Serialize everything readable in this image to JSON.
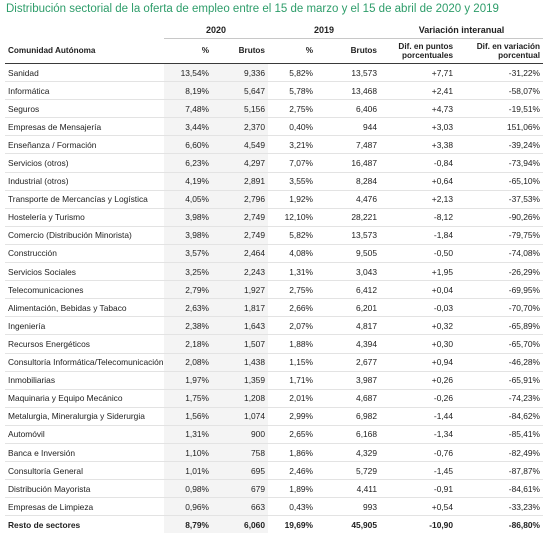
{
  "title": "Distribución sectorial de la oferta de empleo entre el 15 de marzo y el 15 de abril de 2020 y 2019",
  "header": {
    "group_2020": "2020",
    "group_2019": "2019",
    "group_var": "Variación interanual",
    "col_label": "Comunidad Autónoma",
    "col_pct_2020": "%",
    "col_brutos_2020": "Brutos",
    "col_pct_2019": "%",
    "col_brutos_2019": "Brutos",
    "col_dif_pts": "Dif. en puntos porcentuales",
    "col_dif_var": "Dif. en variación porcentual"
  },
  "rows": [
    {
      "sector": "Sanidad",
      "p20": "13,54%",
      "b20": "9,336",
      "p19": "5,82%",
      "b19": "13,573",
      "dpp": "+7,71",
      "dvp": "-31,22%"
    },
    {
      "sector": "Informática",
      "p20": "8,19%",
      "b20": "5,647",
      "p19": "5,78%",
      "b19": "13,468",
      "dpp": "+2,41",
      "dvp": "-58,07%"
    },
    {
      "sector": "Seguros",
      "p20": "7,48%",
      "b20": "5,156",
      "p19": "2,75%",
      "b19": "6,406",
      "dpp": "+4,73",
      "dvp": "-19,51%"
    },
    {
      "sector": "Empresas de Mensajería",
      "p20": "3,44%",
      "b20": "2,370",
      "p19": "0,40%",
      "b19": "944",
      "dpp": "+3,03",
      "dvp": "151,06%"
    },
    {
      "sector": "Enseñanza / Formación",
      "p20": "6,60%",
      "b20": "4,549",
      "p19": "3,21%",
      "b19": "7,487",
      "dpp": "+3,38",
      "dvp": "-39,24%"
    },
    {
      "sector": "Servicios (otros)",
      "p20": "6,23%",
      "b20": "4,297",
      "p19": "7,07%",
      "b19": "16,487",
      "dpp": "-0,84",
      "dvp": "-73,94%"
    },
    {
      "sector": "Industrial (otros)",
      "p20": "4,19%",
      "b20": "2,891",
      "p19": "3,55%",
      "b19": "8,284",
      "dpp": "+0,64",
      "dvp": "-65,10%"
    },
    {
      "sector": "Transporte de Mercancías y Logística",
      "p20": "4,05%",
      "b20": "2,796",
      "p19": "1,92%",
      "b19": "4,476",
      "dpp": "+2,13",
      "dvp": "-37,53%"
    },
    {
      "sector": "Hostelería y Turismo",
      "p20": "3,98%",
      "b20": "2,749",
      "p19": "12,10%",
      "b19": "28,221",
      "dpp": "-8,12",
      "dvp": "-90,26%"
    },
    {
      "sector": "Comercio (Distribución Minorista)",
      "p20": "3,98%",
      "b20": "2,749",
      "p19": "5,82%",
      "b19": "13,573",
      "dpp": "-1,84",
      "dvp": "-79,75%"
    },
    {
      "sector": "Construcción",
      "p20": "3,57%",
      "b20": "2,464",
      "p19": "4,08%",
      "b19": "9,505",
      "dpp": "-0,50",
      "dvp": "-74,08%"
    },
    {
      "sector": "Servicios Sociales",
      "p20": "3,25%",
      "b20": "2,243",
      "p19": "1,31%",
      "b19": "3,043",
      "dpp": "+1,95",
      "dvp": "-26,29%"
    },
    {
      "sector": "Telecomunicaciones",
      "p20": "2,79%",
      "b20": "1,927",
      "p19": "2,75%",
      "b19": "6,412",
      "dpp": "+0,04",
      "dvp": "-69,95%"
    },
    {
      "sector": "Alimentación, Bebidas y Tabaco",
      "p20": "2,63%",
      "b20": "1,817",
      "p19": "2,66%",
      "b19": "6,201",
      "dpp": "-0,03",
      "dvp": "-70,70%"
    },
    {
      "sector": "Ingeniería",
      "p20": "2,38%",
      "b20": "1,643",
      "p19": "2,07%",
      "b19": "4,817",
      "dpp": "+0,32",
      "dvp": "-65,89%"
    },
    {
      "sector": "Recursos Energéticos",
      "p20": "2,18%",
      "b20": "1,507",
      "p19": "1,88%",
      "b19": "4,394",
      "dpp": "+0,30",
      "dvp": "-65,70%"
    },
    {
      "sector": "Consultoría Informática/Telecomunicación",
      "p20": "2,08%",
      "b20": "1,438",
      "p19": "1,15%",
      "b19": "2,677",
      "dpp": "+0,94",
      "dvp": "-46,28%"
    },
    {
      "sector": "Inmobiliarias",
      "p20": "1,97%",
      "b20": "1,359",
      "p19": "1,71%",
      "b19": "3,987",
      "dpp": "+0,26",
      "dvp": "-65,91%"
    },
    {
      "sector": "Maquinaria y Equipo Mecánico",
      "p20": "1,75%",
      "b20": "1,208",
      "p19": "2,01%",
      "b19": "4,687",
      "dpp": "-0,26",
      "dvp": "-74,23%"
    },
    {
      "sector": "Metalurgia, Mineralurgia y Siderurgia",
      "p20": "1,56%",
      "b20": "1,074",
      "p19": "2,99%",
      "b19": "6,982",
      "dpp": "-1,44",
      "dvp": "-84,62%"
    },
    {
      "sector": "Automóvil",
      "p20": "1,31%",
      "b20": "900",
      "p19": "2,65%",
      "b19": "6,168",
      "dpp": "-1,34",
      "dvp": "-85,41%"
    },
    {
      "sector": "Banca e Inversión",
      "p20": "1,10%",
      "b20": "758",
      "p19": "1,86%",
      "b19": "4,329",
      "dpp": "-0,76",
      "dvp": "-82,49%"
    },
    {
      "sector": "Consultoría General",
      "p20": "1,01%",
      "b20": "695",
      "p19": "2,46%",
      "b19": "5,729",
      "dpp": "-1,45",
      "dvp": "-87,87%"
    },
    {
      "sector": "Distribución Mayorista",
      "p20": "0,98%",
      "b20": "679",
      "p19": "1,89%",
      "b19": "4,411",
      "dpp": "-0,91",
      "dvp": "-84,61%"
    },
    {
      "sector": "Empresas de Limpieza",
      "p20": "0,96%",
      "b20": "663",
      "p19": "0,43%",
      "b19": "993",
      "dpp": "+0,54",
      "dvp": "-33,23%"
    }
  ],
  "total": {
    "sector": "Resto de sectores",
    "p20": "8,79%",
    "b20": "6,060",
    "p19": "19,69%",
    "b19": "45,905",
    "dpp": "-10,90",
    "dvp": "-86,80%"
  }
}
